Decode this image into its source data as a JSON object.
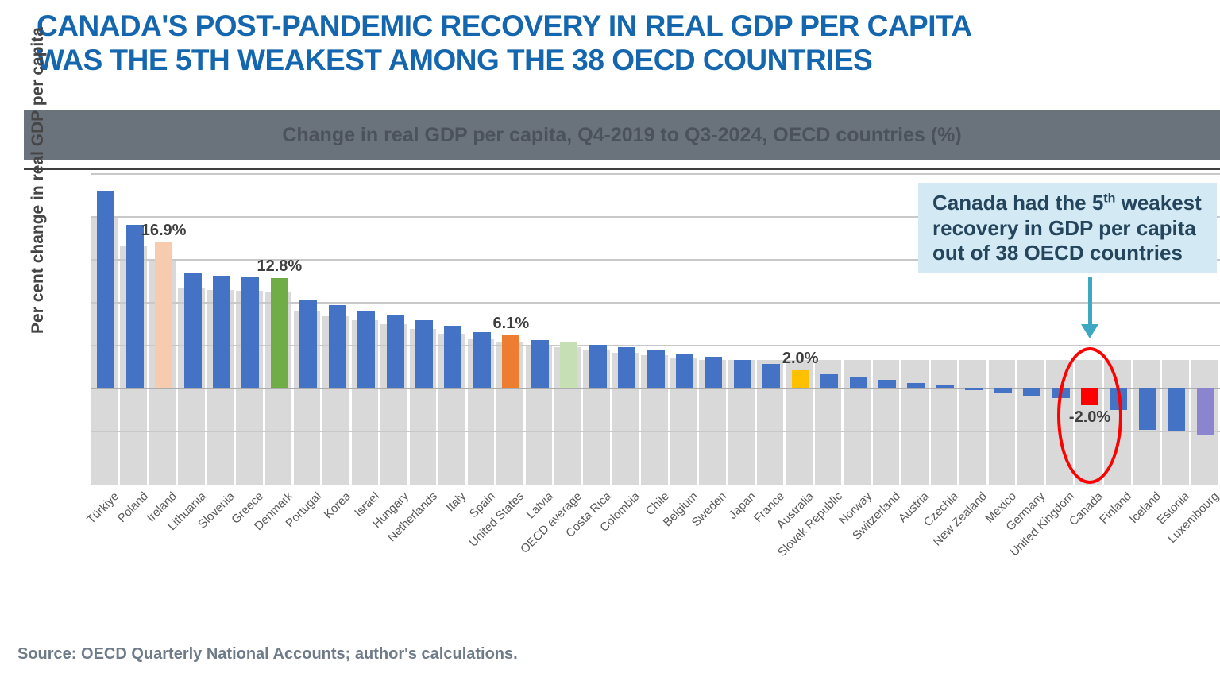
{
  "title": {
    "line1": "CANADA'S POST-PANDEMIC RECOVERY IN REAL GDP PER CAPITA",
    "line2": "WAS THE 5TH WEAKEST AMONG THE 38 OECD COUNTRIES"
  },
  "banner": {
    "text": "Change in real GDP per capita, Q4-2019 to Q3-2024, OECD countries (%)"
  },
  "chart_data": {
    "type": "bar",
    "title": "Change in real GDP per capita, Q4-2019 to Q3-2024, OECD countries (%)",
    "ylabel": "Per cent change in real GDP per capita",
    "xlabel": "",
    "unit": "%",
    "ylim": [
      -7.5,
      25.5
    ],
    "gridline_interval": 5,
    "grid": true,
    "legend_position": "none",
    "sort": "descending",
    "categories": [
      "Türkiye",
      "Poland",
      "Ireland",
      "Lithuania",
      "Slovenia",
      "Greece",
      "Denmark",
      "Portugal",
      "Korea",
      "Israel",
      "Hungary",
      "Netherlands",
      "Italy",
      "Spain",
      "United States",
      "Latvia",
      "OECD average",
      "Costa Rica",
      "Colombia",
      "Chile",
      "Belgium",
      "Sweden",
      "Japan",
      "France",
      "Australia",
      "Slovak Republic",
      "Norway",
      "Switzerland",
      "Austria",
      "Czechia",
      "New Zealand",
      "Mexico",
      "Germany",
      "United Kingdom",
      "Canada",
      "Finland",
      "Iceland",
      "Estonia",
      "Luxembourg"
    ],
    "values": [
      23.0,
      19.0,
      16.9,
      13.4,
      13.1,
      13.0,
      12.8,
      10.2,
      9.6,
      9.0,
      8.5,
      7.9,
      7.2,
      6.5,
      6.1,
      5.6,
      5.4,
      5.0,
      4.7,
      4.4,
      4.0,
      3.6,
      3.2,
      2.8,
      2.0,
      1.6,
      1.3,
      0.9,
      0.6,
      0.3,
      -0.3,
      -0.6,
      -0.9,
      -1.2,
      -2.0,
      -2.6,
      -4.9,
      -5.0,
      -5.6
    ],
    "default_bar_color": "#4472C4",
    "shadow_series_color": "#D9D9D9",
    "highlight_colors": {
      "2": "#F7CBAD",
      "6": "#70AD47",
      "14": "#ED7D31",
      "16": "#C6E0B4",
      "24": "#FFC000",
      "34": "#FF0000",
      "38": "#8B84CF"
    },
    "bar_labels": [
      {
        "index": 2,
        "text": "16.9%",
        "position": "above"
      },
      {
        "index": 6,
        "text": "12.8%",
        "position": "above"
      },
      {
        "index": 14,
        "text": "6.1%",
        "position": "above"
      },
      {
        "index": 24,
        "text": "2.0%",
        "position": "above"
      },
      {
        "index": 34,
        "text": "-2.0%",
        "position": "below"
      }
    ],
    "canada_index": 34
  },
  "callout": {
    "line1_pre": "Canada had the 5",
    "line1_sup": "th",
    "line1_post": " weakest",
    "line2": "recovery in GDP per capita",
    "line3": "out of 38 OECD countries"
  },
  "annotations": {
    "ellipse_color": "#FF0000",
    "arrow_color": "#3EA7C2"
  },
  "source": {
    "text": "Source: OECD Quarterly National Accounts; author's calculations."
  },
  "colors": {
    "headline_blue": "#1467AE",
    "banner_gray": "#6A727B",
    "callout_bg": "#D3EAF4",
    "callout_text": "#24455C",
    "canada_red": "#FF0000"
  }
}
